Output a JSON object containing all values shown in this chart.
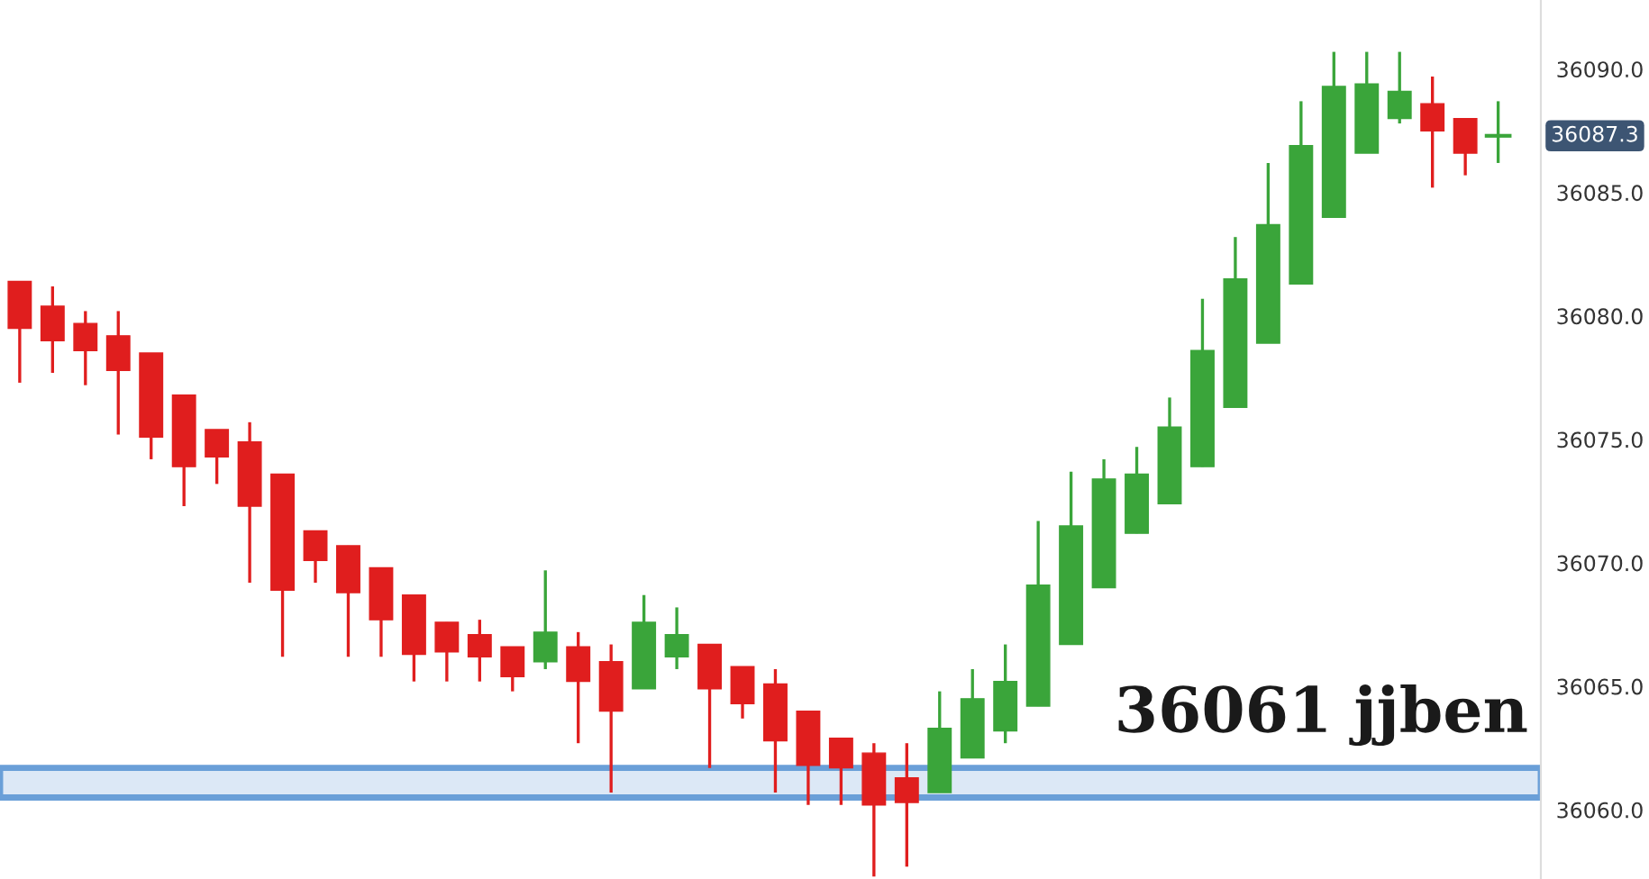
{
  "chart_data": {
    "type": "candlestick",
    "categories": [
      null,
      null,
      null,
      null,
      null,
      null,
      null,
      null,
      null,
      null,
      null,
      null,
      null,
      null,
      null,
      null,
      null,
      null,
      null,
      null,
      null,
      null,
      null,
      null,
      null,
      null,
      null,
      null,
      null,
      null,
      null,
      null,
      null,
      null,
      null,
      null,
      null,
      null,
      null,
      null,
      null,
      null,
      null,
      null,
      null,
      null
    ],
    "ohlc": [
      [
        36081.4,
        36081.4,
        36077.3,
        36079.5
      ],
      [
        36080.4,
        36081.2,
        36077.7,
        36079.0
      ],
      [
        36079.7,
        36080.2,
        36077.2,
        36078.6
      ],
      [
        36079.2,
        36080.2,
        36075.2,
        36077.8
      ],
      [
        36078.5,
        36078.5,
        36074.2,
        36075.1
      ],
      [
        36076.8,
        36076.8,
        36072.3,
        36073.9
      ],
      [
        36075.4,
        36075.4,
        36073.2,
        36074.3
      ],
      [
        36074.9,
        36075.7,
        36069.2,
        36072.3
      ],
      [
        36073.6,
        36073.6,
        36066.2,
        36068.9
      ],
      [
        36071.3,
        36071.3,
        36069.2,
        36070.1
      ],
      [
        36070.7,
        36070.7,
        36066.2,
        36068.8
      ],
      [
        36069.8,
        36069.8,
        36066.2,
        36067.7
      ],
      [
        36068.7,
        36068.7,
        36065.2,
        36066.3
      ],
      [
        36067.6,
        36067.6,
        36065.2,
        36066.4
      ],
      [
        36067.1,
        36067.7,
        36065.2,
        36066.2
      ],
      [
        36066.6,
        36066.6,
        36064.8,
        36065.4
      ],
      [
        36066.0,
        36069.7,
        36065.7,
        36067.2
      ],
      [
        36066.6,
        36067.2,
        36062.7,
        36065.2
      ],
      [
        36066.0,
        36066.7,
        36060.7,
        36064.0
      ],
      [
        36064.9,
        36068.7,
        36064.9,
        36067.6
      ],
      [
        36066.2,
        36068.2,
        36065.7,
        36067.1
      ],
      [
        36066.7,
        36066.7,
        36061.7,
        36064.9
      ],
      [
        36065.8,
        36065.8,
        36063.7,
        36064.3
      ],
      [
        36065.1,
        36065.7,
        36060.7,
        36062.8
      ],
      [
        36064.0,
        36064.0,
        36060.2,
        36061.8
      ],
      [
        36062.9,
        36062.9,
        36060.2,
        36061.7
      ],
      [
        36062.3,
        36062.7,
        36057.3,
        36060.2
      ],
      [
        36061.3,
        36062.7,
        36057.7,
        36060.3
      ],
      [
        36060.7,
        36064.8,
        36060.7,
        36063.3
      ],
      [
        36062.1,
        36065.7,
        36062.1,
        36064.5
      ],
      [
        36063.2,
        36066.7,
        36062.7,
        36065.2
      ],
      [
        36064.2,
        36071.7,
        36064.2,
        36069.1
      ],
      [
        36066.7,
        36073.7,
        36066.7,
        36071.5
      ],
      [
        36069.0,
        36074.2,
        36069.0,
        36073.4
      ],
      [
        36071.2,
        36074.7,
        36071.2,
        36073.6
      ],
      [
        36072.4,
        36076.7,
        36072.4,
        36075.5
      ],
      [
        36073.9,
        36080.7,
        36073.9,
        36078.6
      ],
      [
        36076.3,
        36083.2,
        36076.3,
        36081.5
      ],
      [
        36078.9,
        36086.2,
        36078.9,
        36083.7
      ],
      [
        36081.3,
        36088.7,
        36081.3,
        36086.9
      ],
      [
        36084.0,
        36090.7,
        36084.0,
        36089.3
      ],
      [
        36086.6,
        36090.7,
        36086.6,
        36089.4
      ],
      [
        36088.0,
        36090.7,
        36087.8,
        36089.1
      ],
      [
        36088.6,
        36089.7,
        36085.2,
        36087.5
      ],
      [
        36088.0,
        36088.0,
        36085.7,
        36086.6
      ],
      [
        36087.3,
        36088.7,
        36086.2,
        36087.3
      ]
    ],
    "colors": [
      "#e01e1e",
      "#e01e1e",
      "#e01e1e",
      "#e01e1e",
      "#e01e1e",
      "#e01e1e",
      "#e01e1e",
      "#e01e1e",
      "#e01e1e",
      "#e01e1e",
      "#e01e1e",
      "#e01e1e",
      "#e01e1e",
      "#e01e1e",
      "#e01e1e",
      "#e01e1e",
      "#3aa53a",
      "#e01e1e",
      "#e01e1e",
      "#3aa53a",
      "#3aa53a",
      "#e01e1e",
      "#e01e1e",
      "#e01e1e",
      "#e01e1e",
      "#e01e1e",
      "#e01e1e",
      "#e01e1e",
      "#3aa53a",
      "#3aa53a",
      "#3aa53a",
      "#3aa53a",
      "#3aa53a",
      "#3aa53a",
      "#3aa53a",
      "#3aa53a",
      "#3aa53a",
      "#3aa53a",
      "#3aa53a",
      "#3aa53a",
      "#3aa53a",
      "#3aa53a",
      "#3aa53a",
      "#e01e1e",
      "#e01e1e",
      "#3aa53a"
    ],
    "ylim": [
      36057.2,
      36092.8
    ],
    "yticks": [
      {
        "value": 36060,
        "label": "36060.0"
      },
      {
        "value": 36065,
        "label": "36065.0"
      },
      {
        "value": 36070,
        "label": "36070.0"
      },
      {
        "value": 36075,
        "label": "36075.0"
      },
      {
        "value": 36080,
        "label": "36080.0"
      },
      {
        "value": 36085,
        "label": "36085.0"
      },
      {
        "value": 36090,
        "label": "36090.0"
      }
    ],
    "bands": [
      {
        "axis": "y",
        "from": 36060.5,
        "to": 36061.7,
        "color": "#dce8f6"
      }
    ],
    "annotations": [
      "36061 jjben",
      "36087.3"
    ],
    "grid": false
  }
}
